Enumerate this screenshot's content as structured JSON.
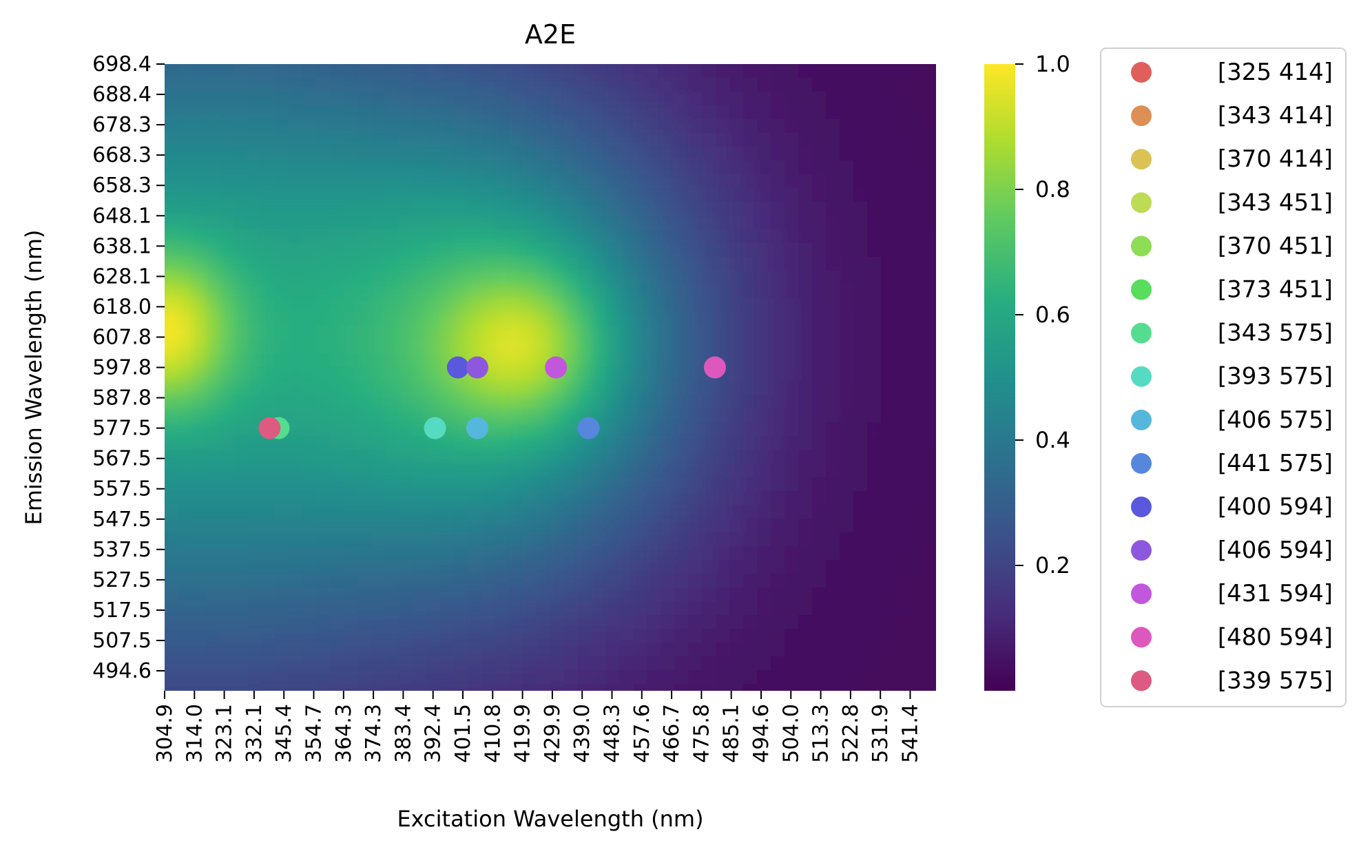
{
  "chart_data": {
    "type": "heatmap",
    "title": "A2E",
    "xlabel": "Excitation Wavelength (nm)",
    "ylabel": "Emission Wavelength (nm)",
    "x_tick_labels": [
      "304.9",
      "314.0",
      "323.1",
      "332.1",
      "345.4",
      "354.7",
      "364.3",
      "374.3",
      "383.4",
      "392.4",
      "401.5",
      "410.8",
      "419.9",
      "429.9",
      "439.0",
      "448.3",
      "457.6",
      "466.7",
      "475.8",
      "485.1",
      "494.6",
      "504.0",
      "513.3",
      "522.8",
      "531.9",
      "541.4"
    ],
    "y_tick_labels": [
      "698.4",
      "688.4",
      "678.3",
      "668.3",
      "658.3",
      "648.1",
      "638.1",
      "628.1",
      "618.0",
      "607.8",
      "597.8",
      "587.8",
      "577.5",
      "567.5",
      "557.5",
      "547.5",
      "537.5",
      "527.5",
      "517.5",
      "507.5",
      "494.6"
    ],
    "colormap": "viridis",
    "colorbar": {
      "range": [
        0,
        1.0
      ],
      "tick_labels": [
        "1.0",
        "0.8",
        "0.6",
        "0.4",
        "0.2"
      ],
      "tick_values": [
        1.0,
        0.8,
        0.6,
        0.4,
        0.2
      ]
    },
    "intensity_peaks": [
      {
        "excitation": 304.9,
        "emission": 610,
        "intensity": 0.95
      },
      {
        "excitation": 420,
        "emission": 605,
        "intensity": 0.92
      }
    ],
    "series": [
      {
        "name": "[325 414]",
        "color": "#e05f5a",
        "points": []
      },
      {
        "name": "[343 414]",
        "color": "#dd8f55",
        "points": []
      },
      {
        "name": "[370 414]",
        "color": "#dbc254",
        "points": []
      },
      {
        "name": "[343 451]",
        "color": "#bddb55",
        "points": []
      },
      {
        "name": "[370 451]",
        "color": "#8ddd55",
        "points": []
      },
      {
        "name": "[373 451]",
        "color": "#58dd5d",
        "points": []
      },
      {
        "name": "[343 575]",
        "color": "#55dd8f",
        "points": [
          {
            "x": 343,
            "y": 577.5
          }
        ]
      },
      {
        "name": "[393 575]",
        "color": "#55dbc2",
        "points": [
          {
            "x": 393,
            "y": 577.5
          }
        ]
      },
      {
        "name": "[406 575]",
        "color": "#56b7dd",
        "points": [
          {
            "x": 406,
            "y": 577.5
          }
        ]
      },
      {
        "name": "[441 575]",
        "color": "#5687dd",
        "points": [
          {
            "x": 441,
            "y": 577.5
          }
        ]
      },
      {
        "name": "[400 594]",
        "color": "#5a58dd",
        "points": [
          {
            "x": 400,
            "y": 597.8
          }
        ]
      },
      {
        "name": "[406 594]",
        "color": "#8d58dd",
        "points": [
          {
            "x": 406,
            "y": 597.8
          }
        ]
      },
      {
        "name": "[431 594]",
        "color": "#c256dd",
        "points": [
          {
            "x": 431,
            "y": 597.8
          }
        ]
      },
      {
        "name": "[480 594]",
        "color": "#dd58bd",
        "points": [
          {
            "x": 480,
            "y": 597.8
          }
        ]
      },
      {
        "name": "[339 575]",
        "color": "#dd5a80",
        "points": [
          {
            "x": 339,
            "y": 577.5
          }
        ]
      }
    ],
    "legend_position": "outside-right",
    "grid": false
  }
}
